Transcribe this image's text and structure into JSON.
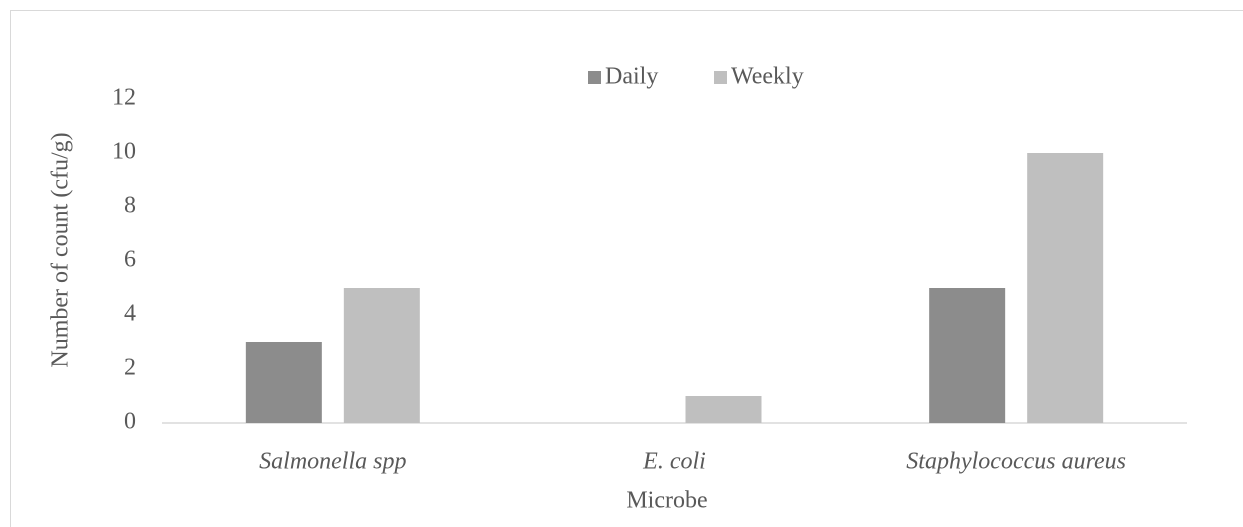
{
  "chart_data": {
    "type": "bar",
    "categories": [
      "Salmonella spp",
      "E. coli",
      "Staphylococcus aureus"
    ],
    "series": [
      {
        "name": "Daily",
        "color": "#8c8c8c",
        "values": [
          3,
          0,
          5
        ]
      },
      {
        "name": "Weekly",
        "color": "#bfbfbf",
        "values": [
          5,
          1,
          10
        ]
      }
    ],
    "xlabel": "Microbe",
    "ylabel": "Number of count (cfu/g)",
    "ylim": [
      0,
      12
    ],
    "yticks": [
      0,
      2,
      4,
      6,
      8,
      10,
      12
    ],
    "grid": false,
    "legend": "top"
  }
}
